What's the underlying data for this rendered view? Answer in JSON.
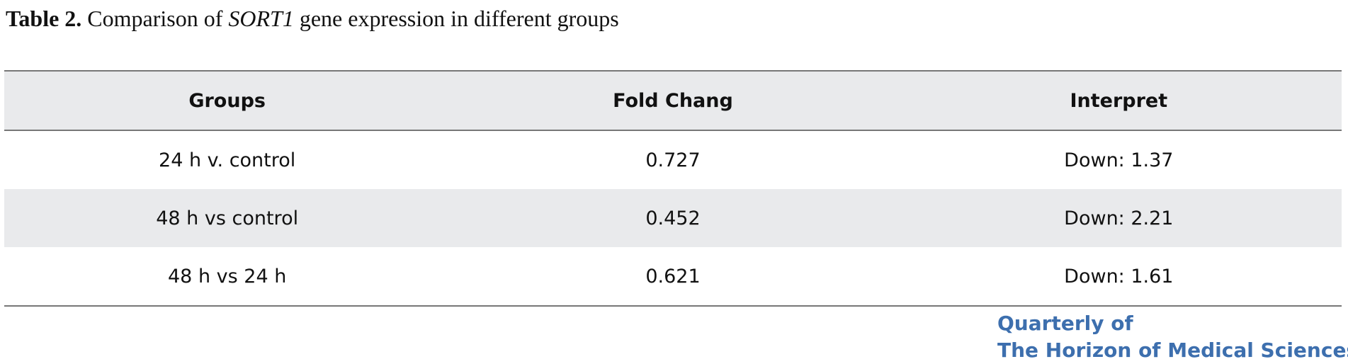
{
  "title": {
    "label": "Table 2.",
    "text_before": "Comparison of ",
    "gene": "SORT1",
    "text_after": " gene expression in different groups"
  },
  "table": {
    "header": [
      "Groups",
      "Fold Chang",
      "Interpret"
    ],
    "rows": [
      [
        "24 h v. control",
        "0.727",
        "Down: 1.37"
      ],
      [
        "48 h vs control",
        "0.452",
        "Down: 2.21"
      ],
      [
        "48 h vs 24 h",
        "0.621",
        "Down: 1.61"
      ]
    ]
  },
  "logo": {
    "line1": "Quarterly of",
    "line2": "The Horizon of Medical Sciences"
  }
}
